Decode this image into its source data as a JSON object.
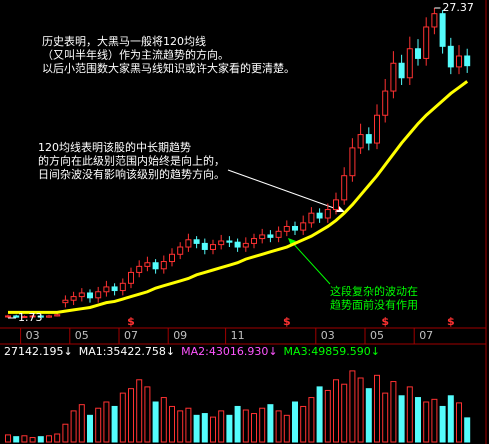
{
  "chart_data": {
    "type": "candlestick",
    "categories": [
      null,
      null,
      null,
      "03",
      null,
      null,
      null,
      null,
      null,
      "05",
      null,
      null,
      null,
      null,
      null,
      "07",
      null,
      null,
      null,
      null,
      null,
      "09",
      null,
      null,
      null,
      null,
      null,
      null,
      "11",
      null,
      null,
      null,
      null,
      null,
      null,
      null,
      null,
      null,
      null,
      "03",
      null,
      null,
      null,
      null,
      null,
      "05",
      null,
      null,
      null,
      null,
      null,
      "07",
      null,
      null,
      null,
      null,
      null
    ],
    "events": [
      null,
      null,
      null,
      null,
      null,
      null,
      null,
      null,
      null,
      null,
      null,
      null,
      null,
      null,
      null,
      "$",
      null,
      null,
      null,
      null,
      null,
      null,
      null,
      null,
      null,
      null,
      null,
      null,
      null,
      null,
      null,
      null,
      null,
      null,
      "$",
      null,
      null,
      null,
      null,
      null,
      null,
      null,
      null,
      null,
      null,
      null,
      "$",
      null,
      null,
      null,
      null,
      null,
      null,
      null,
      "$",
      null,
      null
    ],
    "open": [
      1.85,
      1.9,
      1.8,
      1.85,
      1.9,
      1.8,
      1.9,
      3.0,
      3.2,
      3.5,
      3.8,
      3.4,
      3.9,
      4.3,
      4.0,
      4.6,
      5.5,
      6.0,
      6.3,
      5.8,
      6.4,
      7.0,
      7.6,
      8.2,
      7.9,
      7.4,
      7.8,
      8.1,
      8.0,
      7.6,
      7.9,
      8.3,
      8.6,
      8.4,
      8.9,
      9.3,
      9.0,
      9.6,
      10.4,
      10.0,
      10.7,
      11.5,
      13.5,
      15.8,
      16.9,
      16.2,
      18.5,
      20.5,
      22.8,
      21.6,
      24.0,
      23.2,
      25.8,
      26.9,
      24.2,
      22.5,
      23.4
    ],
    "high": [
      2.0,
      2.0,
      1.95,
      2.0,
      2.0,
      2.0,
      2.2,
      3.6,
      3.9,
      4.2,
      4.1,
      4.3,
      4.8,
      4.6,
      5.0,
      5.9,
      6.5,
      6.8,
      6.6,
      6.9,
      7.5,
      8.0,
      8.7,
      8.5,
      8.3,
      8.2,
      8.6,
      8.5,
      8.3,
      8.4,
      8.7,
      9.1,
      9.0,
      9.3,
      9.8,
      9.7,
      10.2,
      10.9,
      10.8,
      11.2,
      12.1,
      14.2,
      16.6,
      17.8,
      17.5,
      19.4,
      21.5,
      23.8,
      23.5,
      25.0,
      24.8,
      26.6,
      27.37,
      27.2,
      24.9,
      24.3,
      24.0
    ],
    "low": [
      1.73,
      1.75,
      1.75,
      1.8,
      1.75,
      1.75,
      1.85,
      2.6,
      2.8,
      3.1,
      3.0,
      3.0,
      3.5,
      3.6,
      3.6,
      4.2,
      5.1,
      5.6,
      5.4,
      5.4,
      6.0,
      6.6,
      7.2,
      7.5,
      7.0,
      7.0,
      7.4,
      7.6,
      7.2,
      7.2,
      7.5,
      7.9,
      8.0,
      8.0,
      8.5,
      8.6,
      8.6,
      9.2,
      9.6,
      9.6,
      10.3,
      11.1,
      13.0,
      15.3,
      15.6,
      15.7,
      17.9,
      19.9,
      21.0,
      21.0,
      22.6,
      22.6,
      25.2,
      23.6,
      21.9,
      21.9,
      22.0
    ],
    "close": [
      1.9,
      1.8,
      1.85,
      1.9,
      1.8,
      1.9,
      2.0,
      3.2,
      3.5,
      3.8,
      3.4,
      3.9,
      4.3,
      4.0,
      4.6,
      5.5,
      6.0,
      6.3,
      5.8,
      6.4,
      7.0,
      7.6,
      8.2,
      7.9,
      7.4,
      7.8,
      8.1,
      8.0,
      7.6,
      7.9,
      8.3,
      8.6,
      8.4,
      8.9,
      9.3,
      9.0,
      9.6,
      10.4,
      10.0,
      10.7,
      11.5,
      13.5,
      15.8,
      16.9,
      16.2,
      18.5,
      20.5,
      22.8,
      21.6,
      24.0,
      23.2,
      25.8,
      26.9,
      24.2,
      22.5,
      23.4,
      22.6
    ],
    "up_color": "#ff3232",
    "down_color": "#54fcfc",
    "ylim": [
      1.73,
      27.37
    ],
    "ma120": {
      "color": "#ffff00",
      "values": [
        2.2,
        2.2,
        2.2,
        2.2,
        2.2,
        2.2,
        2.2,
        2.3,
        2.4,
        2.5,
        2.6,
        2.8,
        3.0,
        3.1,
        3.3,
        3.5,
        3.7,
        3.9,
        4.2,
        4.4,
        4.6,
        4.8,
        5.0,
        5.3,
        5.5,
        5.7,
        5.9,
        6.1,
        6.3,
        6.6,
        6.8,
        7.0,
        7.2,
        7.4,
        7.6,
        7.9,
        8.2,
        8.5,
        8.9,
        9.3,
        9.8,
        10.4,
        11.1,
        11.9,
        12.7,
        13.5,
        14.4,
        15.3,
        16.2,
        17.0,
        17.8,
        18.5,
        19.1,
        19.7,
        20.3,
        20.8,
        21.3
      ]
    },
    "volume": {
      "ylim": [
        0,
        90000
      ],
      "values": [
        8000,
        6000,
        7000,
        5000,
        6000,
        7000,
        9000,
        20000,
        35000,
        42000,
        30000,
        38000,
        45000,
        40000,
        55000,
        60000,
        70000,
        62000,
        45000,
        50000,
        40000,
        35000,
        38000,
        30000,
        32000,
        28000,
        35000,
        30000,
        40000,
        36000,
        32000,
        38000,
        42000,
        35000,
        30000,
        45000,
        40000,
        50000,
        62000,
        58000,
        70000,
        65000,
        80000,
        72000,
        60000,
        75000,
        55000,
        68000,
        52000,
        62000,
        50000,
        45000,
        48000,
        40000,
        52000,
        44000,
        27142.195
      ],
      "indicators": [
        {
          "label": "27142.195↓",
          "color": "#ffffff"
        },
        {
          "label": "MA1:35422.758↓",
          "color": "#ffffff"
        },
        {
          "label": "MA2:43016.930↓",
          "color": "#ff55ff"
        },
        {
          "label": "MA3:49859.590↓",
          "color": "#00ff00"
        }
      ]
    },
    "annotations": [
      {
        "color": "#ffffff",
        "lines": [
          "历史表明，大黑马一般将120均线",
          "（又叫半年线）作为主流趋势的方向。",
          "以后小范围数大家黑马线知识或许大家看的更清楚。"
        ]
      },
      {
        "color": "#ffffff",
        "lines": [
          "120均线表明该股的中长期趋势",
          "的方向在此级别范围内始终是向上的，",
          "日间杂波没有影响该级别的趋势方向。"
        ]
      },
      {
        "color": "#00ff00",
        "lines": [
          "这段复杂的波动在",
          "趋势面前没有作用"
        ]
      }
    ]
  }
}
